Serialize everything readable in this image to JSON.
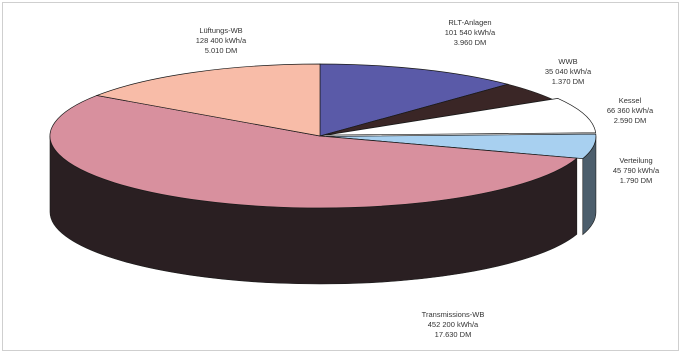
{
  "chart_data": {
    "type": "pie",
    "title": "",
    "unit_energy": "kWh/a",
    "unit_cost": "DM",
    "slices": [
      {
        "name": "RLT-Anlagen",
        "energy": "101 540 kWh/a",
        "cost": "3.960 DM",
        "value": 101540,
        "color": "#5a5aa8"
      },
      {
        "name": "WWB",
        "energy": "35 040 kWh/a",
        "cost": "1.370 DM",
        "value": 35040,
        "color": "#3a2626"
      },
      {
        "name": "Kessel",
        "energy": "66 360 kWh/a",
        "cost": "2.590 DM",
        "value": 66360,
        "color": "#ffffff"
      },
      {
        "name": "Verteilung",
        "energy": "45 790 kWh/a",
        "cost": "1.790 DM",
        "value": 45790,
        "color": "#a8d0f0"
      },
      {
        "name": "Transmissions-WB",
        "energy": "452 200 kWh/a",
        "cost": "17.630 DM",
        "value": 452200,
        "color": "#d8909e"
      },
      {
        "name": "Lüftungs-WB",
        "energy": "128 400 kWh/a",
        "cost": "5.010 DM",
        "value": 128400,
        "color": "#f8bca8"
      }
    ],
    "legend": "none",
    "grid": false,
    "style": "3d-exploded"
  }
}
